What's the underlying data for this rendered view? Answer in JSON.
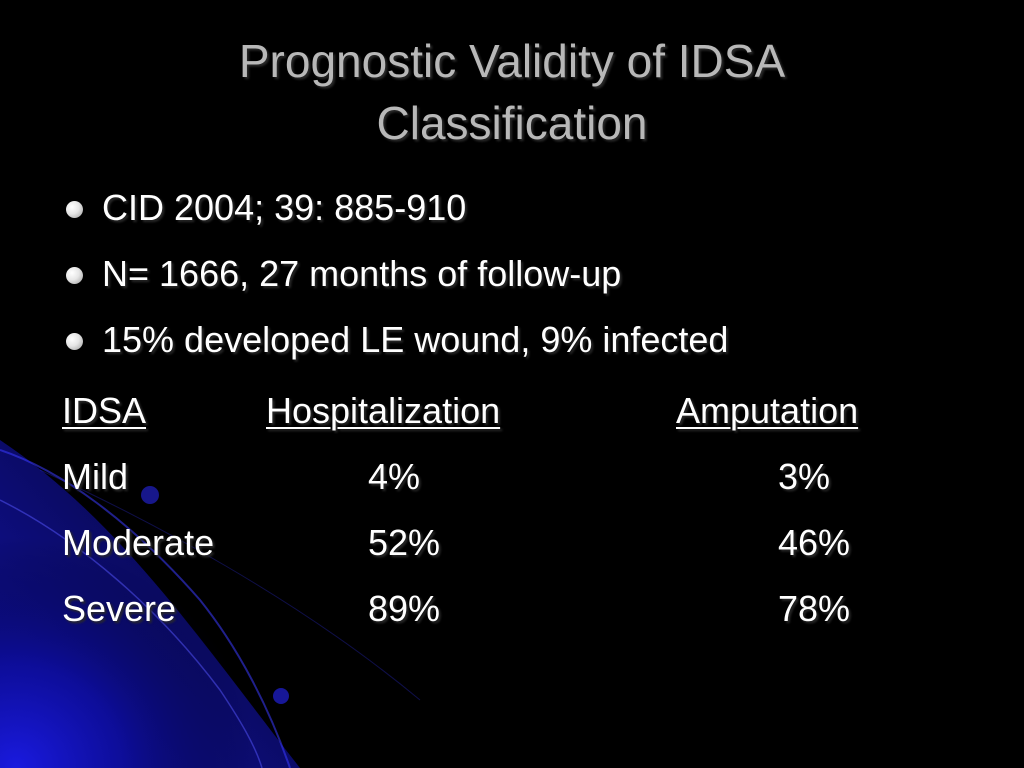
{
  "slide": {
    "title_lines": [
      "Prognostic Validity of IDSA",
      "Classification"
    ],
    "bullets": [
      "CID 2004; 39: 885-910",
      "N= 1666, 27 months of follow-up",
      "15% developed LE wound, 9% infected"
    ],
    "table": {
      "headers": [
        "IDSA",
        "Hospitalization",
        "Amputation"
      ],
      "rows": [
        [
          "Mild",
          "4%",
          "3%"
        ],
        [
          "Moderate",
          "52%",
          "46%"
        ],
        [
          "Severe",
          "89%",
          "78%"
        ]
      ]
    }
  },
  "colors": {
    "background": "#000000",
    "title": "#b8b8b8",
    "text": "#ffffff",
    "accent_blue": "#1a1adf"
  }
}
